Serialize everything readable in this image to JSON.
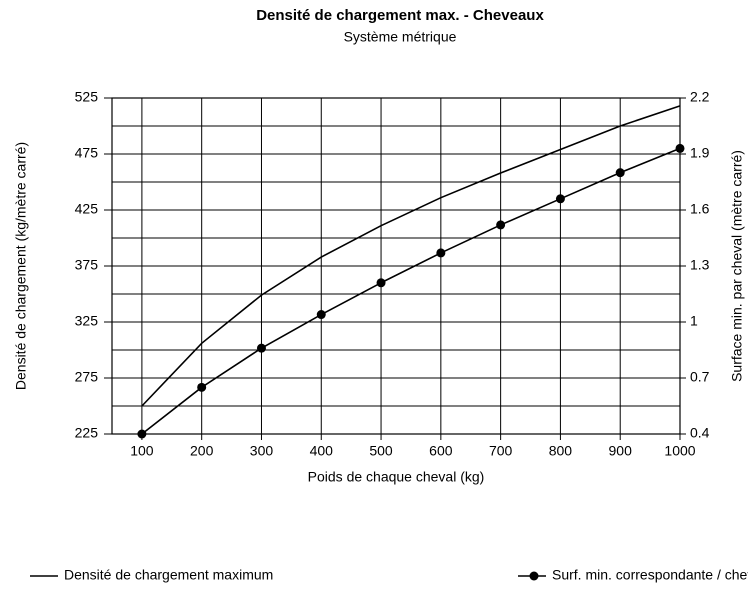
{
  "chart_data": {
    "type": "line",
    "title": "Densité de chargement max. - Cheveaux",
    "subtitle": "Système métrique",
    "x_label": "Poids de chaque cheval (kg)",
    "y_label": "Densité de chargement (kg/mètre carré)",
    "y2_label": "Surface min. par cheval (mètre carré)",
    "x": [
      100,
      200,
      300,
      400,
      500,
      600,
      700,
      800,
      900,
      1000
    ],
    "xlim": [
      50,
      1000
    ],
    "xticks": [
      100,
      200,
      300,
      400,
      500,
      600,
      700,
      800,
      900,
      1000
    ],
    "ylim": [
      225,
      525
    ],
    "yticks": [
      225,
      275,
      325,
      375,
      425,
      475,
      525
    ],
    "y_minor_ticks": [
      250,
      300,
      350,
      400,
      450,
      500
    ],
    "y2lim": [
      0.4,
      2.2
    ],
    "y2ticks": [
      0.4,
      0.7,
      1,
      1.3,
      1.6,
      1.9,
      2.2
    ],
    "grid": true,
    "legend": "bottom",
    "series": [
      {
        "name": "Densité de chargement maximum",
        "color": "#000000",
        "marker": false,
        "values": [
          250,
          306,
          349,
          383,
          411,
          436,
          458,
          479,
          500,
          518
        ]
      },
      {
        "name": "Surf. min. correspondante / cheval",
        "color": "#000000",
        "marker": true,
        "axis": "y2",
        "values": [
          0.4,
          0.65,
          0.86,
          1.04,
          1.21,
          1.37,
          1.52,
          1.66,
          1.8,
          1.93
        ]
      }
    ]
  }
}
